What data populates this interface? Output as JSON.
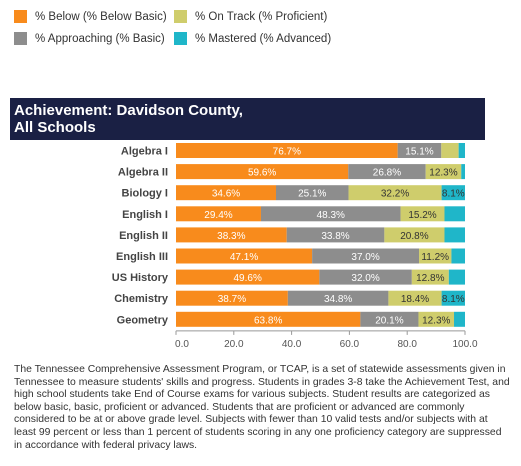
{
  "legend": [
    {
      "label": "% Below (% Below Basic)",
      "color": "#f88b1c"
    },
    {
      "label": "% On Track (% Proficient)",
      "color": "#cfcd6c"
    },
    {
      "label": "% Approaching (% Basic)",
      "color": "#8d8d8d"
    },
    {
      "label": "% Mastered (% Advanced)",
      "color": "#1fb6c9"
    }
  ],
  "title_line1": "Achievement: Davidson County,",
  "title_line2": "All Schools",
  "description": "The Tennessee Comprehensive Assessment Program, or TCAP, is a set of statewide assessments given in Tennessee to measure students' skills and progress. Students in grades 3-8 take the Achievement Test, and high school students take End of Course exams for various subjects. Student results are categorized as below basic, basic, proficient or advanced. Students that are proficient or advanced are commonly considered to be at or above grade level. Subjects with fewer than 10 valid tests and/or subjects with at least 99 percent or less than 1 percent of students scoring in any one proficiency category are suppressed in accordance with federal privacy laws.",
  "chart_data": {
    "type": "bar",
    "orientation": "horizontal",
    "stacked": true,
    "categories": [
      "Algebra I",
      "Algebra II",
      "Biology I",
      "English I",
      "English II",
      "English III",
      "US History",
      "Chemistry",
      "Geometry"
    ],
    "series": [
      {
        "name": "% Below (% Below Basic)",
        "color": "#f88b1c",
        "values": [
          76.7,
          59.6,
          34.6,
          29.4,
          38.3,
          47.1,
          49.6,
          38.7,
          63.8
        ],
        "labels": [
          "76.7%",
          "59.6%",
          "34.6%",
          "29.4%",
          "38.3%",
          "47.1%",
          "49.6%",
          "38.7%",
          "63.8%"
        ]
      },
      {
        "name": "% Approaching (% Basic)",
        "color": "#8d8d8d",
        "values": [
          15.1,
          26.8,
          25.1,
          48.3,
          33.8,
          37.0,
          32.0,
          34.8,
          20.1
        ],
        "labels": [
          "15.1%",
          "26.8%",
          "25.1%",
          "48.3%",
          "33.8%",
          "37.0%",
          "32.0%",
          "34.8%",
          "20.1%"
        ]
      },
      {
        "name": "% On Track (% Proficient)",
        "color": "#cfcd6c",
        "values": [
          6.0,
          12.3,
          32.2,
          15.2,
          20.8,
          11.2,
          12.8,
          18.4,
          12.3
        ],
        "labels": [
          "",
          "12.3%",
          "32.2%",
          "15.2%",
          "20.8%",
          "11.2%",
          "12.8%",
          "18.4%",
          "12.3%"
        ]
      },
      {
        "name": "% Mastered (% Advanced)",
        "color": "#1fb6c9",
        "values": [
          2.2,
          1.3,
          8.1,
          7.1,
          7.1,
          4.7,
          5.6,
          8.1,
          3.8
        ],
        "labels": [
          "",
          "",
          "8.1%",
          "",
          "",
          "",
          "",
          "8.1%",
          ""
        ]
      }
    ],
    "xlim": [
      0,
      100
    ],
    "xticks": [
      "0.0",
      "20.0",
      "40.0",
      "60.0",
      "80.0",
      "100.0"
    ],
    "grid": false
  }
}
